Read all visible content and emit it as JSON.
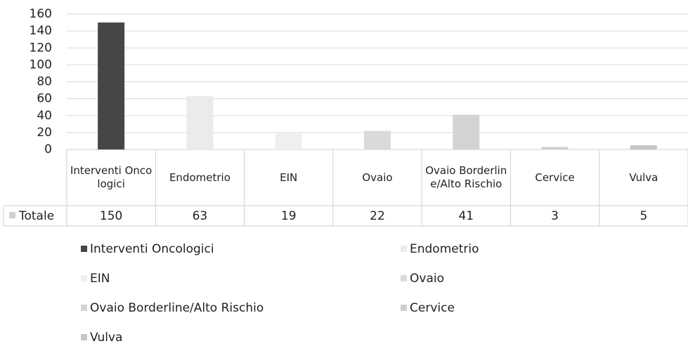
{
  "chart_data": {
    "type": "bar",
    "categories": [
      "Interventi Oncologici",
      "Endometrio",
      "EIN",
      "Ovaio",
      "Ovaio Borderline/Alto Rischio",
      "Cervice",
      "Vulva"
    ],
    "series_name": "Totale",
    "values": [
      150,
      63,
      19,
      22,
      41,
      3,
      5
    ],
    "colors": [
      "#464646",
      "#ebebeb",
      "#efefef",
      "#dadada",
      "#d3d3d3",
      "#cfcfcf",
      "#c6c6c6"
    ],
    "ylim": [
      0,
      160
    ],
    "yticks": [
      0,
      20,
      40,
      60,
      80,
      100,
      120,
      140,
      160
    ],
    "grid": true
  }
}
